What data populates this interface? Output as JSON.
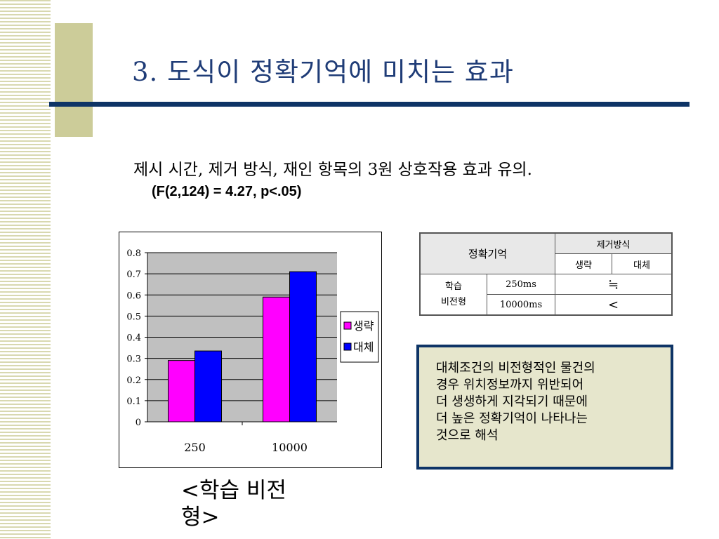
{
  "slide": {
    "title": "3. 도식이 정확기억에 미치는 효과",
    "summary": "제시 시간, 제거 방식, 재인 항목의 3원 상호작용 효과 유의.",
    "stat": "(F(2,124) = 4.27, p<.05)",
    "caption_lines": [
      "<학습 비전",
      "형>"
    ]
  },
  "chart_data": {
    "type": "bar",
    "categories": [
      "250",
      "10000"
    ],
    "series": [
      {
        "name": "생략",
        "values": [
          0.29,
          0.59
        ],
        "color": "#ff00ff"
      },
      {
        "name": "대체",
        "values": [
          0.335,
          0.71
        ],
        "color": "#0000ff"
      }
    ],
    "ylim": [
      0,
      0.8
    ],
    "yticks": [
      "0",
      "0.1",
      "0.2",
      "0.3",
      "0.4",
      "0.5",
      "0.6",
      "0.7",
      "0.8"
    ],
    "title": "",
    "xlabel": "",
    "ylabel": "",
    "grid": true,
    "legend_position": "right",
    "plot_background": "#c0c0c0"
  },
  "table": {
    "corner": "정확기억",
    "group_header": "제거방식",
    "col_headers": [
      "생략",
      "대체"
    ],
    "row_group": [
      "학습",
      "비전형"
    ],
    "rows": [
      {
        "label": "250ms",
        "value": "≒"
      },
      {
        "label": "10000ms",
        "value": "<"
      }
    ]
  },
  "note": {
    "lines": [
      "대체조건의 비전형적인 물건의",
      "경우 위치정보까지 위반되어",
      "더 생생하게 지각되기 때문에",
      "더 높은 정확기억이 나타나는",
      "것으로 해석"
    ]
  }
}
